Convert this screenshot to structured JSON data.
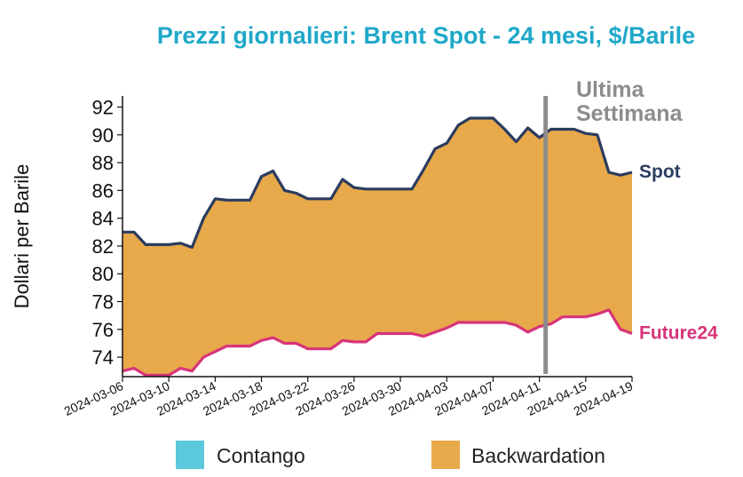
{
  "chart_data": {
    "type": "area",
    "title": "Prezzi giornalieri: Brent Spot - 24 mesi, $/Barile",
    "ylabel": "Dollari per Barile",
    "xlabel": "",
    "ylim": [
      72.6,
      92.8
    ],
    "yticks": [
      74,
      76,
      78,
      80,
      82,
      84,
      86,
      88,
      90,
      92
    ],
    "xticks": [
      "2024-03-06",
      "2024-03-10",
      "2024-03-14",
      "2024-03-18",
      "2024-03-22",
      "2024-03-26",
      "2024-03-30",
      "2024-04-03",
      "2024-04-07",
      "2024-04-11",
      "2024-04-15",
      "2024-04-19"
    ],
    "x_start": "2024-03-06",
    "x_end": "2024-04-19",
    "series": [
      {
        "name": "Spot",
        "color": "#2b3c5e",
        "points": [
          [
            "2024-03-06",
            83.0
          ],
          [
            "2024-03-07",
            83.0
          ],
          [
            "2024-03-08",
            82.1
          ],
          [
            "2024-03-09",
            82.1
          ],
          [
            "2024-03-10",
            82.1
          ],
          [
            "2024-03-11",
            82.2
          ],
          [
            "2024-03-12",
            81.9
          ],
          [
            "2024-03-13",
            84.0
          ],
          [
            "2024-03-14",
            85.4
          ],
          [
            "2024-03-15",
            85.3
          ],
          [
            "2024-03-16",
            85.3
          ],
          [
            "2024-03-17",
            85.3
          ],
          [
            "2024-03-18",
            87.0
          ],
          [
            "2024-03-19",
            87.4
          ],
          [
            "2024-03-20",
            86.0
          ],
          [
            "2024-03-21",
            85.8
          ],
          [
            "2024-03-22",
            85.4
          ],
          [
            "2024-03-23",
            85.4
          ],
          [
            "2024-03-24",
            85.4
          ],
          [
            "2024-03-25",
            86.8
          ],
          [
            "2024-03-26",
            86.2
          ],
          [
            "2024-03-27",
            86.1
          ],
          [
            "2024-03-28",
            86.1
          ],
          [
            "2024-03-29",
            86.1
          ],
          [
            "2024-03-30",
            86.1
          ],
          [
            "2024-03-31",
            86.1
          ],
          [
            "2024-04-01",
            87.5
          ],
          [
            "2024-04-02",
            89.0
          ],
          [
            "2024-04-03",
            89.4
          ],
          [
            "2024-04-04",
            90.7
          ],
          [
            "2024-04-05",
            91.2
          ],
          [
            "2024-04-06",
            91.2
          ],
          [
            "2024-04-07",
            91.2
          ],
          [
            "2024-04-08",
            90.4
          ],
          [
            "2024-04-09",
            89.5
          ],
          [
            "2024-04-10",
            90.5
          ],
          [
            "2024-04-11",
            89.8
          ],
          [
            "2024-04-12",
            90.4
          ],
          [
            "2024-04-13",
            90.4
          ],
          [
            "2024-04-14",
            90.4
          ],
          [
            "2024-04-15",
            90.1
          ],
          [
            "2024-04-16",
            90.0
          ],
          [
            "2024-04-17",
            87.3
          ],
          [
            "2024-04-18",
            87.1
          ],
          [
            "2024-04-19",
            87.3
          ]
        ]
      },
      {
        "name": "Future24",
        "color": "#d8347a",
        "points": [
          [
            "2024-03-06",
            73.0
          ],
          [
            "2024-03-07",
            73.2
          ],
          [
            "2024-03-08",
            72.7
          ],
          [
            "2024-03-09",
            72.7
          ],
          [
            "2024-03-10",
            72.7
          ],
          [
            "2024-03-11",
            73.2
          ],
          [
            "2024-03-12",
            73.0
          ],
          [
            "2024-03-13",
            74.0
          ],
          [
            "2024-03-14",
            74.4
          ],
          [
            "2024-03-15",
            74.8
          ],
          [
            "2024-03-16",
            74.8
          ],
          [
            "2024-03-17",
            74.8
          ],
          [
            "2024-03-18",
            75.2
          ],
          [
            "2024-03-19",
            75.4
          ],
          [
            "2024-03-20",
            75.0
          ],
          [
            "2024-03-21",
            75.0
          ],
          [
            "2024-03-22",
            74.6
          ],
          [
            "2024-03-23",
            74.6
          ],
          [
            "2024-03-24",
            74.6
          ],
          [
            "2024-03-25",
            75.2
          ],
          [
            "2024-03-26",
            75.1
          ],
          [
            "2024-03-27",
            75.1
          ],
          [
            "2024-03-28",
            75.7
          ],
          [
            "2024-03-29",
            75.7
          ],
          [
            "2024-03-30",
            75.7
          ],
          [
            "2024-03-31",
            75.7
          ],
          [
            "2024-04-01",
            75.5
          ],
          [
            "2024-04-02",
            75.8
          ],
          [
            "2024-04-03",
            76.1
          ],
          [
            "2024-04-04",
            76.5
          ],
          [
            "2024-04-05",
            76.5
          ],
          [
            "2024-04-06",
            76.5
          ],
          [
            "2024-04-07",
            76.5
          ],
          [
            "2024-04-08",
            76.5
          ],
          [
            "2024-04-09",
            76.3
          ],
          [
            "2024-04-10",
            75.8
          ],
          [
            "2024-04-11",
            76.2
          ],
          [
            "2024-04-12",
            76.4
          ],
          [
            "2024-04-13",
            76.9
          ],
          [
            "2024-04-14",
            76.9
          ],
          [
            "2024-04-15",
            76.9
          ],
          [
            "2024-04-16",
            77.1
          ],
          [
            "2024-04-17",
            77.4
          ],
          [
            "2024-04-18",
            76.0
          ],
          [
            "2024-04-19",
            75.7
          ]
        ]
      }
    ],
    "marker": {
      "date": "2024-04-12",
      "label_lines": [
        "Ultima",
        "Settimana"
      ],
      "color": "#8c8c8c"
    },
    "legend": {
      "position": "bottom",
      "items": [
        {
          "label": "Contango",
          "color": "#5bc8dc"
        },
        {
          "label": "Backwardation",
          "color": "#e8a94a"
        }
      ]
    },
    "fill_color": "#e8a94a",
    "title_color": "#1fa8c9",
    "grid": false
  }
}
